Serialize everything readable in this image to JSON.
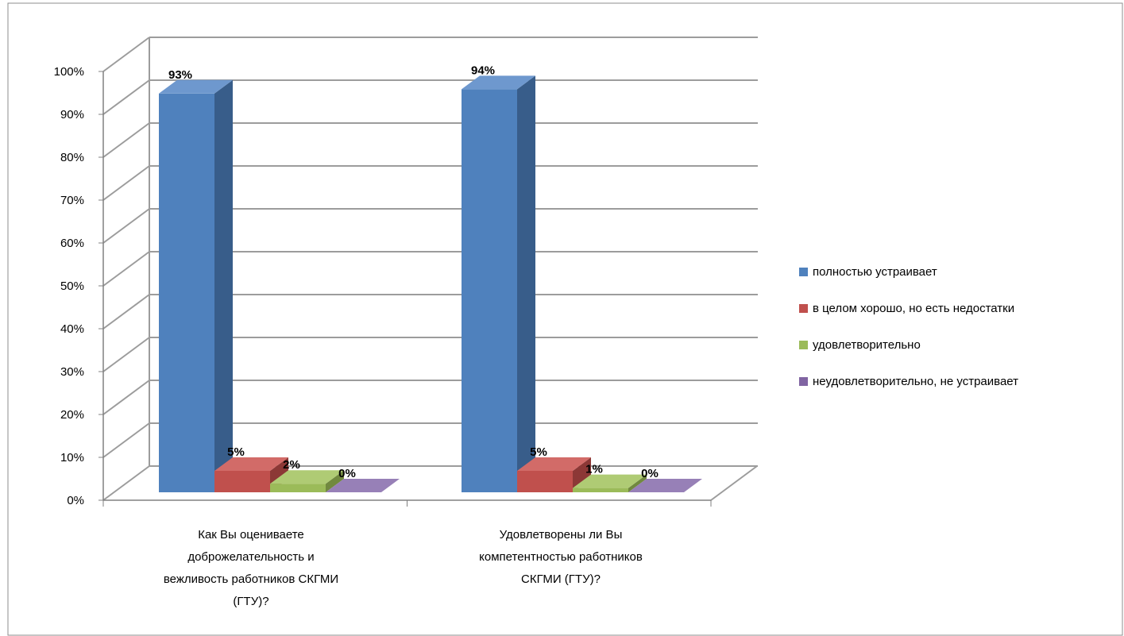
{
  "chart_data": {
    "type": "bar",
    "categories": [
      "Как Вы оцениваете доброжелательность и вежливость работников СКГМИ (ГТУ)?",
      "Удовлетворены ли Вы компетентностью работников СКГМИ (ГТУ)?"
    ],
    "category_lines": [
      [
        "Как Вы оцениваете",
        "доброжелательность и",
        "вежливость работников СКГМИ",
        "(ГТУ)?"
      ],
      [
        "Удовлетворены ли Вы",
        "компетентностью работников",
        "СКГМИ (ГТУ)?"
      ]
    ],
    "series": [
      {
        "name": "полностью  устраивает",
        "values": [
          93,
          94
        ],
        "labels": [
          "93%",
          "94%"
        ]
      },
      {
        "name": "в целом хорошо, но есть недостатки",
        "values": [
          5,
          5
        ],
        "labels": [
          "5%",
          "5%"
        ]
      },
      {
        "name": "удовлетворительно",
        "values": [
          2,
          1
        ],
        "labels": [
          "2%",
          "1%"
        ]
      },
      {
        "name": "неудовлетворительно, не устраивает",
        "values": [
          0,
          0
        ],
        "labels": [
          "0%",
          "0%"
        ]
      }
    ],
    "y_ticks": [
      "0%",
      "10%",
      "20%",
      "30%",
      "40%",
      "50%",
      "60%",
      "70%",
      "80%",
      "90%",
      "100%"
    ],
    "ylim": [
      0,
      100
    ],
    "grid": true,
    "legend": "right",
    "style": "3d-column",
    "colors": {
      "series_front": [
        "#4F81BD",
        "#C0504D",
        "#9BBB59",
        "#8064A2"
      ],
      "series_top": [
        "#6E98CE",
        "#D26B68",
        "#AFCB74",
        "#9780B7"
      ],
      "series_side": [
        "#385D8A",
        "#8C3836",
        "#71893F",
        "#5C4776"
      ],
      "grid": "#9C9C9C",
      "axis": "#808080",
      "frame": "#8E8E8E"
    }
  }
}
